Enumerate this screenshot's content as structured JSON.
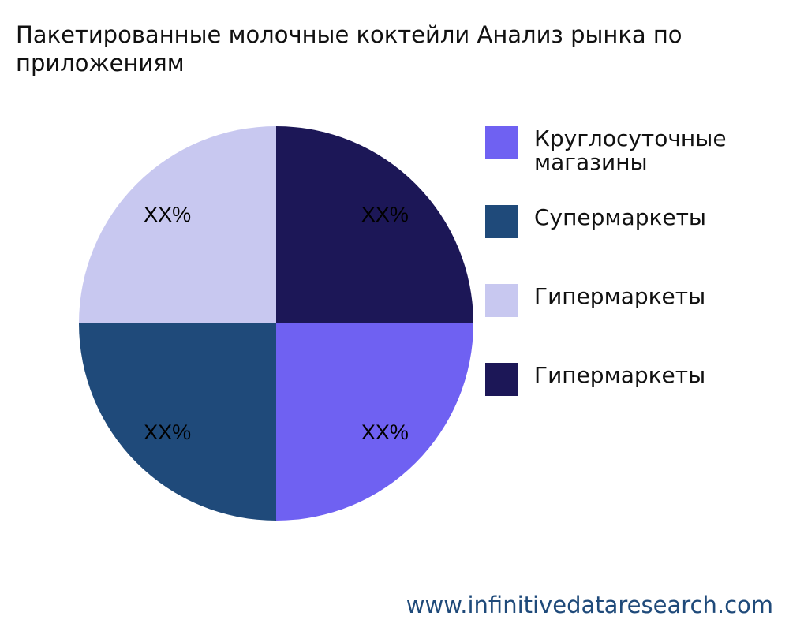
{
  "title_lines": [
    "Пакетированные молочные коктейли Анализ рынка по",
    "приложениям"
  ],
  "chart_data": {
    "type": "pie",
    "categories": [
      "Круглосуточные магазины",
      "Супермаркеты",
      "Гипермаркеты",
      "Гипермаркеты"
    ],
    "values": [
      25,
      25,
      25,
      25
    ],
    "data_labels": [
      "XX%",
      "XX%",
      "XX%",
      "XX%"
    ],
    "colors": [
      "#6f61f2",
      "#1f4a7a",
      "#c8c8f0",
      "#1c1757"
    ],
    "legend_position": "right"
  },
  "legend": [
    {
      "label": "Круглосуточные магазины",
      "color": "#6f61f2"
    },
    {
      "label": "Супермаркеты",
      "color": "#1f4a7a"
    },
    {
      "label": "Гипермаркеты",
      "color": "#c8c8f0"
    },
    {
      "label": "Гипермаркеты",
      "color": "#1c1757"
    }
  ],
  "watermark": "www.infinitivedataresearch.com"
}
